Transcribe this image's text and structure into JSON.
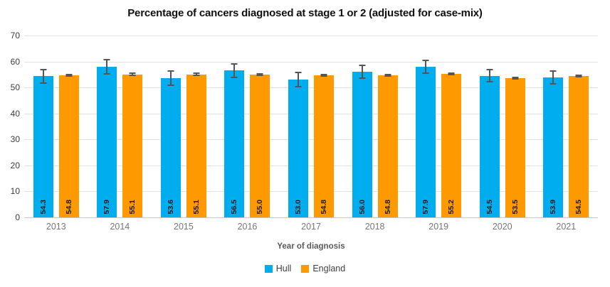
{
  "chart_data": {
    "type": "bar",
    "title": "Percentage of cancers diagnosed at stage 1 or 2 (adjusted for case-mix)",
    "xlabel": "Year of diagnosis",
    "ylabel": "",
    "ylim": [
      0,
      70
    ],
    "yticks": [
      0,
      10,
      20,
      30,
      40,
      50,
      60,
      70
    ],
    "grid": true,
    "legend_position": "bottom",
    "categories": [
      "2013",
      "2014",
      "2015",
      "2016",
      "2017",
      "2018",
      "2019",
      "2020",
      "2021"
    ],
    "series": [
      {
        "name": "Hull",
        "color": "#00AEEF",
        "values": [
          54.3,
          57.9,
          53.6,
          56.5,
          53.0,
          56.0,
          57.9,
          54.5,
          53.9
        ],
        "error": [
          2.7,
          2.7,
          2.6,
          2.6,
          2.7,
          2.4,
          2.5,
          2.3,
          2.5
        ]
      },
      {
        "name": "England",
        "color": "#FF9900",
        "values": [
          54.8,
          55.1,
          55.1,
          55.0,
          54.8,
          54.8,
          55.2,
          53.5,
          54.5
        ],
        "error": [
          0.3,
          0.3,
          0.3,
          0.3,
          0.3,
          0.3,
          0.3,
          0.3,
          0.3
        ]
      }
    ]
  },
  "colors": {
    "gridline": "#e2e2e2",
    "axis_line": "#c9c9c9",
    "error_bar": "#555555",
    "value_label": "#1a1a1a",
    "tick_label": "#3a3a3a",
    "year_label": "#767676"
  }
}
